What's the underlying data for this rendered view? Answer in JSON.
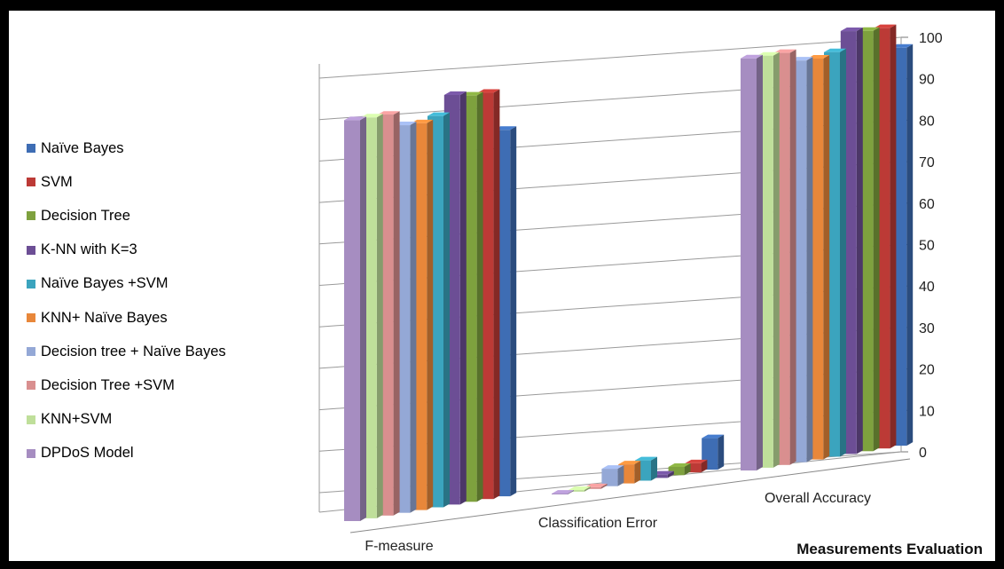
{
  "chart_data": {
    "type": "bar",
    "variant": "3d-clustered-column",
    "title": "",
    "xlabel": "Measurements Evaluation",
    "ylabel": "",
    "ylim": [
      0,
      100
    ],
    "y_ticks": [
      "0",
      "10",
      "20",
      "30",
      "40",
      "50",
      "60",
      "70",
      "80",
      "90",
      "100"
    ],
    "categories": [
      "F-measure",
      "Classification Error",
      "Overall Accuracy"
    ],
    "grid": true,
    "legend_position": "left",
    "series": [
      {
        "name": "DPDoS Model",
        "color": "#A68DC1",
        "values": [
          96.7,
          0.2,
          99.4
        ]
      },
      {
        "name": "KNN+SVM",
        "color": "#BFDF9A",
        "values": [
          96.7,
          0.4,
          99.4
        ]
      },
      {
        "name": "Decision Tree +SVM",
        "color": "#D98F8F",
        "values": [
          96.7,
          0.4,
          99.4
        ]
      },
      {
        "name": "Decision tree + Naïve Bayes",
        "color": "#94A8D6",
        "values": [
          93.5,
          4.2,
          96.9
        ]
      },
      {
        "name": "KNN+ Naïve Bayes",
        "color": "#E8873A",
        "values": [
          93.3,
          4.6,
          96.7
        ]
      },
      {
        "name": "Naïve Bayes +SVM",
        "color": "#3BA4BE",
        "values": [
          94.4,
          4.9,
          97.6
        ]
      },
      {
        "name": "K-NN with K=3",
        "color": "#6C4E95",
        "values": [
          98.8,
          0.8,
          102.0
        ]
      },
      {
        "name": "Decision Tree",
        "color": "#7EA13E",
        "values": [
          98.0,
          2.0,
          101.4
        ]
      },
      {
        "name": "SVM",
        "color": "#BC3A36",
        "values": [
          98.0,
          2.2,
          101.4
        ]
      },
      {
        "name": "Naïve Bayes",
        "color": "#3E6DB4",
        "values": [
          88.4,
          7.6,
          96.0
        ]
      }
    ]
  }
}
